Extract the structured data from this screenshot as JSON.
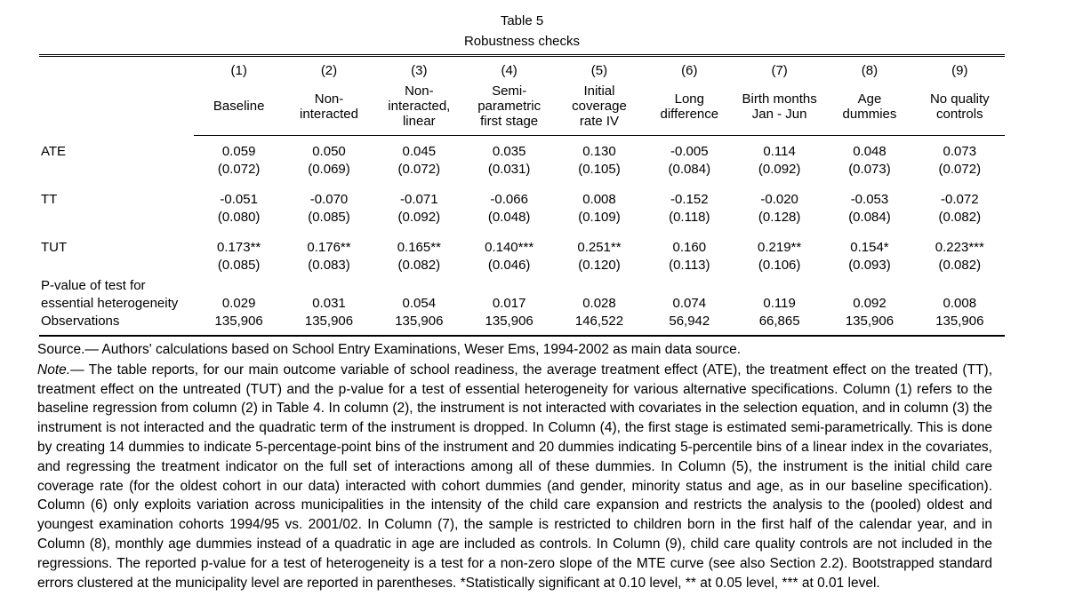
{
  "page": {
    "title_line1": "Table 5",
    "title_line2": "Robustness checks"
  },
  "table": {
    "column_numbers": [
      "(1)",
      "(2)",
      "(3)",
      "(4)",
      "(5)",
      "(6)",
      "(7)",
      "(8)",
      "(9)"
    ],
    "column_headers": [
      "Baseline",
      "Non-\ninteracted",
      "Non-\ninteracted,\nlinear",
      "Semi-\nparametric\nfirst stage",
      "Initial\ncoverage\nrate IV",
      "Long\ndifference",
      "Birth months\nJan - Jun",
      "Age\ndummies",
      "No quality\ncontrols"
    ],
    "rows": [
      {
        "label": "ATE",
        "estimates": [
          "0.059",
          "0.050",
          "0.045",
          "0.035",
          "0.130",
          "-0.005",
          "0.114",
          "0.048",
          "0.073"
        ],
        "std_errors": [
          "(0.072)",
          "(0.069)",
          "(0.072)",
          "(0.031)",
          "(0.105)",
          "(0.084)",
          "(0.092)",
          "(0.073)",
          "(0.072)"
        ]
      },
      {
        "label": "TT",
        "estimates": [
          "-0.051",
          "-0.070",
          "-0.071",
          "-0.066",
          "0.008",
          "-0.152",
          "-0.020",
          "-0.053",
          "-0.072"
        ],
        "std_errors": [
          "(0.080)",
          "(0.085)",
          "(0.092)",
          "(0.048)",
          "(0.109)",
          "(0.118)",
          "(0.128)",
          "(0.084)",
          "(0.082)"
        ]
      },
      {
        "label": "TUT",
        "estimates": [
          "0.173**",
          "0.176**",
          "0.165**",
          "0.140***",
          "0.251**",
          "0.160",
          "0.219**",
          "0.154*",
          "0.223***"
        ],
        "std_errors": [
          "(0.085)",
          "(0.083)",
          "(0.082)",
          "(0.046)",
          "(0.120)",
          "(0.113)",
          "(0.106)",
          "(0.093)",
          "(0.082)"
        ]
      }
    ],
    "pvalue": {
      "label_line1": "P-value of test for",
      "label_line2": "essential heterogeneity",
      "values": [
        "0.029",
        "0.031",
        "0.054",
        "0.017",
        "0.028",
        "0.074",
        "0.119",
        "0.092",
        "0.008"
      ]
    },
    "observations": {
      "label": "Observations",
      "values": [
        "135,906",
        "135,906",
        "135,906",
        "135,906",
        "146,522",
        "56,942",
        "66,865",
        "135,906",
        "135,906"
      ]
    }
  },
  "notes": {
    "source": "Source.— Authors' calculations based on School Entry Examinations, Weser Ems, 1994-2002 as main data source.",
    "note_label": "Note.",
    "note_text": "— The table reports, for our main outcome variable of school readiness, the average treatment effect (ATE), the treatment effect on the treated (TT), treatment effect on the untreated (TUT) and the p-value for a test of essential heterogeneity for various alternative specifications. Column (1) refers to the baseline regression from column (2) in Table 4. In column (2), the instrument is not interacted with covariates in the selection equation, and in column (3) the instrument is not interacted and the quadratic term of the instrument is dropped. In Column (4), the first stage is estimated semi-parametrically. This is done by creating 14 dummies to indicate 5-percentage-point bins of the instrument and 20 dummies indicating 5-percentile bins of a linear index in the covariates, and regressing the treatment indicator on the full set of interactions among all of these dummies. In Column (5), the instrument is the initial child care coverage rate (for the oldest cohort in our data) interacted with cohort dummies (and gender, minority status and age, as in our baseline specification). Column (6) only exploits variation across municipalities in the intensity of the child care expansion and restricts the analysis to the (pooled) oldest and youngest examination cohorts 1994/95 vs. 2001/02.  In Column (7), the sample is restricted to children born in the first half of the calendar year, and in Column (8), monthly age dummies instead of a quadratic in age are included as controls. In Column (9), child care quality controls are not included in the regressions. The reported p-value for a test of heterogeneity is a test for a non-zero slope of the MTE curve (see also Section 2.2). Bootstrapped standard errors clustered at the municipality level are reported in parentheses. *Statistically significant at 0.10 level, ** at 0.05 level, *** at 0.01 level."
  }
}
